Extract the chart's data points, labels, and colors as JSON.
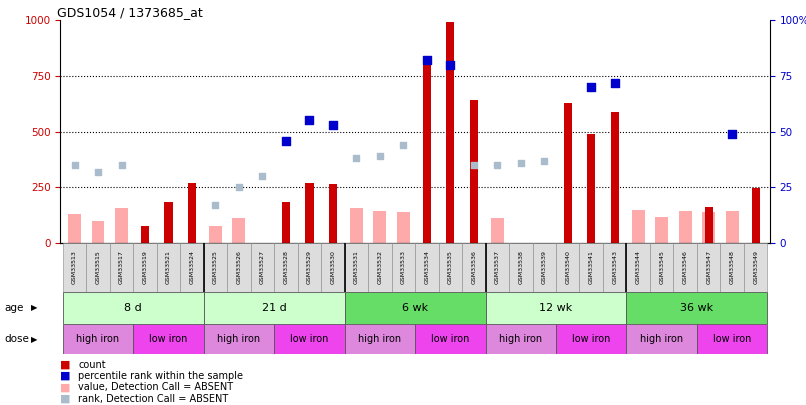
{
  "title": "GDS1054 / 1373685_at",
  "samples": [
    "GSM33513",
    "GSM33515",
    "GSM33517",
    "GSM33519",
    "GSM33521",
    "GSM33524",
    "GSM33525",
    "GSM33526",
    "GSM33527",
    "GSM33528",
    "GSM33529",
    "GSM33530",
    "GSM33531",
    "GSM33532",
    "GSM33533",
    "GSM33534",
    "GSM33535",
    "GSM33536",
    "GSM33537",
    "GSM33538",
    "GSM33539",
    "GSM33540",
    "GSM33541",
    "GSM33543",
    "GSM33544",
    "GSM33545",
    "GSM33546",
    "GSM33547",
    "GSM33548",
    "GSM33549"
  ],
  "count": [
    0,
    0,
    0,
    75,
    185,
    270,
    0,
    0,
    0,
    185,
    270,
    265,
    0,
    0,
    0,
    840,
    990,
    640,
    0,
    0,
    0,
    630,
    490,
    590,
    0,
    0,
    0,
    160,
    0,
    245
  ],
  "percentile_rank_pct": [
    null,
    null,
    null,
    null,
    null,
    null,
    null,
    null,
    null,
    46,
    55,
    53,
    null,
    null,
    null,
    82,
    80,
    null,
    null,
    null,
    null,
    null,
    70,
    72,
    null,
    null,
    null,
    null,
    49,
    null
  ],
  "absent_value": [
    130,
    100,
    155,
    null,
    null,
    null,
    75,
    110,
    null,
    null,
    null,
    null,
    155,
    145,
    140,
    null,
    null,
    null,
    110,
    null,
    null,
    null,
    null,
    null,
    150,
    115,
    145,
    140,
    145,
    null
  ],
  "absent_rank_pct": [
    35,
    32,
    35,
    null,
    null,
    null,
    17,
    25,
    30,
    null,
    null,
    null,
    38,
    39,
    44,
    null,
    null,
    35,
    35,
    36,
    37,
    null,
    null,
    null,
    null,
    null,
    null,
    null,
    null,
    null
  ],
  "count_color": "#cc0000",
  "percentile_color": "#0000cc",
  "absent_value_color": "#ffaaaa",
  "absent_rank_color": "#aabbcc",
  "age_groups": [
    {
      "label": "8 d",
      "start": 0,
      "end": 6,
      "color": "#ccffcc"
    },
    {
      "label": "21 d",
      "start": 6,
      "end": 12,
      "color": "#ccffcc"
    },
    {
      "label": "6 wk",
      "start": 12,
      "end": 18,
      "color": "#66dd66"
    },
    {
      "label": "12 wk",
      "start": 18,
      "end": 24,
      "color": "#ccffcc"
    },
    {
      "label": "36 wk",
      "start": 24,
      "end": 30,
      "color": "#66dd66"
    }
  ],
  "dose_groups": [
    {
      "label": "high iron",
      "start": 0,
      "end": 3,
      "color": "#dd88dd"
    },
    {
      "label": "low iron",
      "start": 3,
      "end": 6,
      "color": "#ee44ee"
    },
    {
      "label": "high iron",
      "start": 6,
      "end": 9,
      "color": "#dd88dd"
    },
    {
      "label": "low iron",
      "start": 9,
      "end": 12,
      "color": "#ee44ee"
    },
    {
      "label": "high iron",
      "start": 12,
      "end": 15,
      "color": "#dd88dd"
    },
    {
      "label": "low iron",
      "start": 15,
      "end": 18,
      "color": "#ee44ee"
    },
    {
      "label": "high iron",
      "start": 18,
      "end": 21,
      "color": "#dd88dd"
    },
    {
      "label": "low iron",
      "start": 21,
      "end": 24,
      "color": "#ee44ee"
    },
    {
      "label": "high iron",
      "start": 24,
      "end": 27,
      "color": "#dd88dd"
    },
    {
      "label": "low iron",
      "start": 27,
      "end": 30,
      "color": "#ee44ee"
    }
  ],
  "ylim_left": [
    0,
    1000
  ],
  "ylim_right": [
    0,
    100
  ],
  "yticks_left": [
    0,
    250,
    500,
    750,
    1000
  ],
  "yticks_right": [
    0,
    25,
    50,
    75,
    100
  ]
}
